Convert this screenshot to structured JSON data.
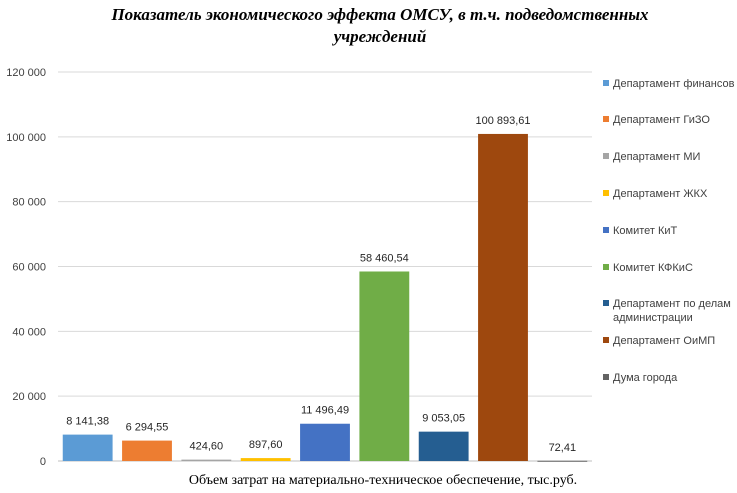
{
  "chart_data": {
    "type": "bar",
    "title_lines": [
      "Показатель экономического эффекта ОМСУ, в т.ч. подведомственных",
      "учреждений"
    ],
    "xlabel": "Объем затрат на материально-техническое обеспечение, тыс.руб.",
    "ylabel": "",
    "ylim": [
      0,
      120000
    ],
    "yticks": [
      0,
      20000,
      40000,
      60000,
      80000,
      100000,
      120000
    ],
    "ytick_labels": [
      "0",
      "20 000",
      "40 000",
      "60 000",
      "80 000",
      "100 000",
      "120 000"
    ],
    "grid": true,
    "legend_position": "right",
    "series": [
      {
        "name": "Департамент финансов",
        "value": 8141.38,
        "label": "8 141,38",
        "color": "#5B9BD5"
      },
      {
        "name": "Департамент ГиЗО",
        "value": 6294.55,
        "label": "6 294,55",
        "color": "#ED7D31"
      },
      {
        "name": "Департамент МИ",
        "value": 424.6,
        "label": "424,60",
        "color": "#A5A5A5"
      },
      {
        "name": "Департамент ЖКХ",
        "value": 897.6,
        "label": "897,60",
        "color": "#FFC000"
      },
      {
        "name": "Комитет КиТ",
        "value": 11496.49,
        "label": "11 496,49",
        "color": "#4472C4"
      },
      {
        "name": "Комитет КФКиС",
        "value": 58460.54,
        "label": "58 460,54",
        "color": "#70AD47"
      },
      {
        "name": "Департамент по делам администрации",
        "legend_lines": [
          "Департамент по делам",
          "администрации"
        ],
        "value": 9053.05,
        "label": "9 053,05",
        "color": "#255E91"
      },
      {
        "name": "Департамент ОиМП",
        "value": 100893.61,
        "label": "100 893,61",
        "color": "#9E480E"
      },
      {
        "name": "Дума города",
        "value": 72.41,
        "label": "72,41",
        "color": "#636363"
      }
    ]
  }
}
